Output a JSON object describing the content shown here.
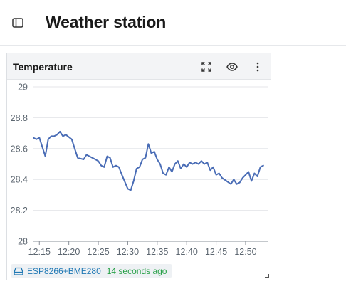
{
  "header": {
    "title": "Weather station",
    "sidebar_toggle_icon": "sidebar-panel-icon"
  },
  "card": {
    "title": "Temperature",
    "actions": [
      "fullscreen-icon",
      "eye-icon",
      "more-vertical-icon"
    ],
    "source": {
      "device": "ESP8266+BME280",
      "updated": "14 seconds ago",
      "icon": "storage-icon"
    }
  },
  "chart_data": {
    "type": "line",
    "title": "",
    "xlabel": "",
    "ylabel": "",
    "ylim": [
      28,
      29
    ],
    "yticks": [
      "28",
      "28.2",
      "28.4",
      "28.6",
      "28.8",
      "29"
    ],
    "xticks": [
      "12:15",
      "12:20",
      "12:25",
      "12:30",
      "12:35",
      "12:40",
      "12:45",
      "12:50"
    ],
    "xlim": [
      "12:14",
      "12:53:45"
    ],
    "grid": true,
    "line_color": "#4a6db6",
    "series": [
      {
        "x": [
          "12:14:00",
          "12:14:30",
          "12:15:00",
          "12:16:00",
          "12:16:30",
          "12:17:00",
          "12:17:30",
          "12:18:00",
          "12:18:30",
          "12:19:00",
          "12:19:30",
          "12:20:30",
          "12:21:00",
          "12:21:30",
          "12:22:30",
          "12:23:00",
          "12:24:00",
          "12:24:30",
          "12:25:00",
          "12:25:30",
          "12:26:00",
          "12:26:30",
          "12:27:00",
          "12:27:30",
          "12:28:00",
          "12:28:30",
          "12:29:00",
          "12:30:00",
          "12:30:30",
          "12:31:00",
          "12:31:30",
          "12:32:00",
          "12:32:30",
          "12:33:00",
          "12:33:30",
          "12:34:00",
          "12:34:30",
          "12:35:00",
          "12:35:30",
          "12:36:00",
          "12:36:30",
          "12:37:00",
          "12:37:30",
          "12:38:00",
          "12:38:30",
          "12:39:00",
          "12:39:30",
          "12:40:00",
          "12:40:30",
          "12:41:00",
          "12:41:30",
          "12:42:00",
          "12:42:30",
          "12:43:00",
          "12:43:30",
          "12:44:00",
          "12:44:30",
          "12:45:00",
          "12:45:30",
          "12:46:00",
          "12:47:30",
          "12:48:00",
          "12:48:30",
          "12:49:00",
          "12:49:30",
          "12:50:00",
          "12:50:30",
          "12:51:00",
          "12:51:30",
          "12:52:00",
          "12:52:30",
          "12:53:00"
        ],
        "y": [
          28.67,
          28.66,
          28.67,
          28.55,
          28.66,
          28.68,
          28.68,
          28.69,
          28.71,
          28.68,
          28.69,
          28.66,
          28.6,
          28.54,
          28.53,
          28.56,
          28.54,
          28.53,
          28.52,
          28.49,
          28.48,
          28.55,
          28.54,
          28.48,
          28.49,
          28.48,
          28.43,
          28.34,
          28.33,
          28.39,
          28.47,
          28.48,
          28.53,
          28.54,
          28.63,
          28.57,
          28.58,
          28.53,
          28.5,
          28.44,
          28.43,
          28.48,
          28.45,
          28.5,
          28.52,
          28.47,
          28.5,
          28.48,
          28.51,
          28.5,
          28.51,
          28.5,
          28.52,
          28.5,
          28.51,
          28.46,
          28.48,
          28.43,
          28.44,
          28.41,
          28.37,
          28.4,
          28.37,
          28.38,
          28.41,
          28.43,
          28.45,
          28.39,
          28.44,
          28.42,
          28.48,
          28.49
        ]
      }
    ]
  }
}
